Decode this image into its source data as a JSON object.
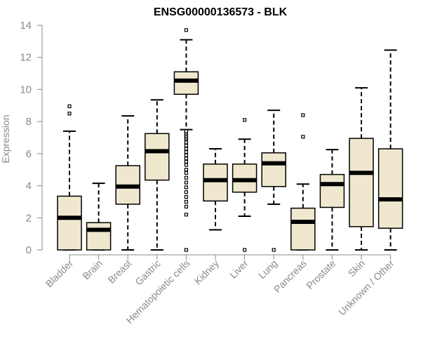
{
  "chart_data": {
    "type": "boxplot",
    "title": "ENSG00000136573 - BLK",
    "xlabel": "",
    "ylabel": "Expression",
    "ylim": [
      0,
      14
    ],
    "yticks": [
      0,
      2,
      4,
      6,
      8,
      10,
      12,
      14
    ],
    "box_fill": "#efe8cf",
    "categories": [
      "Bladder",
      "Brain",
      "Breast",
      "Gastric",
      "Hematopoietic cells",
      "Kidney",
      "Liver",
      "Lung",
      "Pancreas",
      "Prostate",
      "Skin",
      "Unknown / Other"
    ],
    "boxes": [
      {
        "category": "Bladder",
        "min": 0,
        "q1": 0,
        "median": 2.0,
        "q3": 3.35,
        "max": 7.4,
        "outliers": [
          8.5,
          8.95
        ]
      },
      {
        "category": "Brain",
        "min": 0,
        "q1": 0,
        "median": 1.25,
        "q3": 1.7,
        "max": 4.15,
        "outliers": []
      },
      {
        "category": "Breast",
        "min": 0,
        "q1": 2.85,
        "median": 3.95,
        "q3": 5.25,
        "max": 8.35,
        "outliers": []
      },
      {
        "category": "Gastric",
        "min": 0,
        "q1": 4.35,
        "median": 6.15,
        "q3": 7.25,
        "max": 9.35,
        "outliers": []
      },
      {
        "category": "Hematopoietic cells",
        "min": 7.5,
        "q1": 9.7,
        "median": 10.55,
        "q3": 11.1,
        "max": 13.1,
        "outliers": [
          13.7,
          0,
          2.2,
          2.7,
          3.0,
          3.3,
          3.6,
          3.9,
          4.2,
          4.5,
          4.8,
          5.0,
          5.3,
          5.5,
          5.7,
          5.9,
          6.1,
          6.3,
          6.5,
          6.7,
          6.9,
          7.0,
          7.1,
          7.2,
          7.3,
          7.4
        ]
      },
      {
        "category": "Kidney",
        "min": 1.25,
        "q1": 3.05,
        "median": 4.35,
        "q3": 5.35,
        "max": 6.3,
        "outliers": []
      },
      {
        "category": "Liver",
        "min": 2.1,
        "q1": 3.6,
        "median": 4.35,
        "q3": 5.35,
        "max": 6.9,
        "outliers": [
          8.1,
          0
        ]
      },
      {
        "category": "Lung",
        "min": 2.85,
        "q1": 3.95,
        "median": 5.4,
        "q3": 6.05,
        "max": 8.7,
        "outliers": [
          0
        ]
      },
      {
        "category": "Pancreas",
        "min": 0,
        "q1": 0,
        "median": 1.75,
        "q3": 2.6,
        "max": 4.1,
        "outliers": [
          7.05,
          8.4
        ]
      },
      {
        "category": "Prostate",
        "min": 0,
        "q1": 2.65,
        "median": 4.1,
        "q3": 4.7,
        "max": 6.25,
        "outliers": []
      },
      {
        "category": "Skin",
        "min": 0,
        "q1": 1.45,
        "median": 4.8,
        "q3": 6.95,
        "max": 10.1,
        "outliers": []
      },
      {
        "category": "Unknown / Other",
        "min": 0,
        "q1": 1.35,
        "median": 3.15,
        "q3": 6.3,
        "max": 12.45,
        "outliers": []
      }
    ]
  }
}
